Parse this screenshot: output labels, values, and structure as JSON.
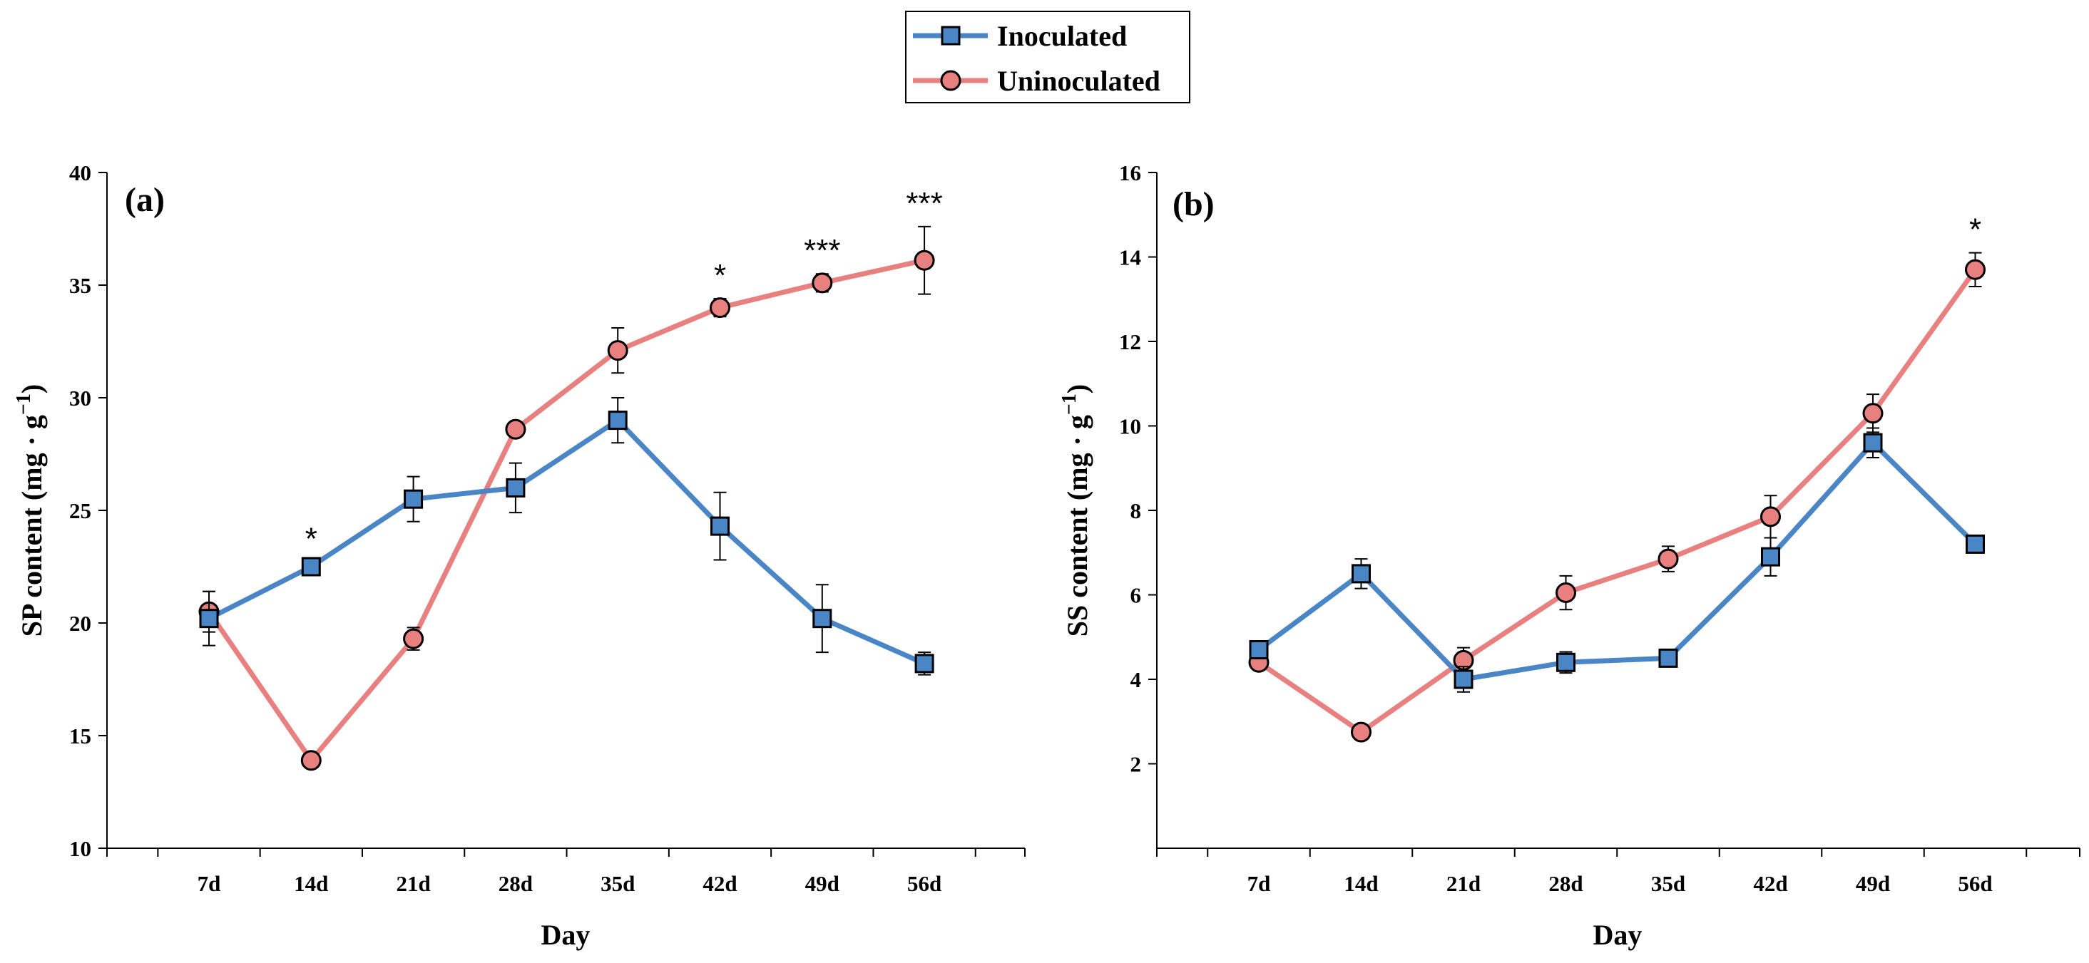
{
  "legend": {
    "items": [
      {
        "label": "Inoculated",
        "color": "#4a86c6",
        "marker": "square"
      },
      {
        "label": "Uninoculated",
        "color": "#e88080",
        "marker": "circle"
      }
    ]
  },
  "chart_data": [
    {
      "type": "line",
      "panel_label": "(a)",
      "xlabel": "Day",
      "ylabel": "SP content (mg · g",
      "ylabel_sup": "−1",
      "ylabel_close": ")",
      "categories": [
        "7d",
        "14d",
        "21d",
        "28d",
        "35d",
        "42d",
        "49d",
        "56d"
      ],
      "ylim": [
        10,
        40
      ],
      "yticks": [
        10,
        15,
        20,
        25,
        30,
        35,
        40
      ],
      "series": [
        {
          "name": "Inoculated",
          "values": [
            20.2,
            22.5,
            25.5,
            26.0,
            29.0,
            24.3,
            20.2,
            18.2
          ],
          "errors": [
            1.2,
            0.2,
            1.0,
            1.1,
            1.0,
            1.5,
            1.5,
            0.5
          ]
        },
        {
          "name": "Uninoculated",
          "values": [
            20.5,
            13.9,
            19.3,
            28.6,
            32.1,
            34.0,
            35.1,
            36.1
          ],
          "errors": [
            0.9,
            0.2,
            0.5,
            0.3,
            1.0,
            0.4,
            0.4,
            1.5
          ]
        }
      ],
      "significance": [
        {
          "category": "14d",
          "label": "*"
        },
        {
          "category": "42d",
          "label": "*"
        },
        {
          "category": "49d",
          "label": "***"
        },
        {
          "category": "56d",
          "label": "***"
        }
      ]
    },
    {
      "type": "line",
      "panel_label": "(b)",
      "xlabel": "Day",
      "ylabel": "SS content (mg · g",
      "ylabel_sup": "−1",
      "ylabel_close": ")",
      "categories": [
        "7d",
        "14d",
        "21d",
        "28d",
        "35d",
        "42d",
        "49d",
        "56d"
      ],
      "ylim": [
        0,
        16
      ],
      "yticks": [
        2,
        4,
        6,
        8,
        10,
        12,
        14,
        16
      ],
      "series": [
        {
          "name": "Inoculated",
          "values": [
            4.7,
            6.5,
            4.0,
            4.4,
            4.5,
            6.9,
            9.6,
            7.2
          ],
          "errors": [
            0.2,
            0.35,
            0.3,
            0.25,
            0.12,
            0.45,
            0.35,
            0.2
          ]
        },
        {
          "name": "Uninoculated",
          "values": [
            4.4,
            2.75,
            4.45,
            6.05,
            6.85,
            7.85,
            10.3,
            13.7
          ],
          "errors": [
            0.1,
            0.1,
            0.3,
            0.4,
            0.3,
            0.5,
            0.45,
            0.4
          ]
        }
      ],
      "significance": [
        {
          "category": "56d",
          "label": "*"
        }
      ]
    }
  ]
}
